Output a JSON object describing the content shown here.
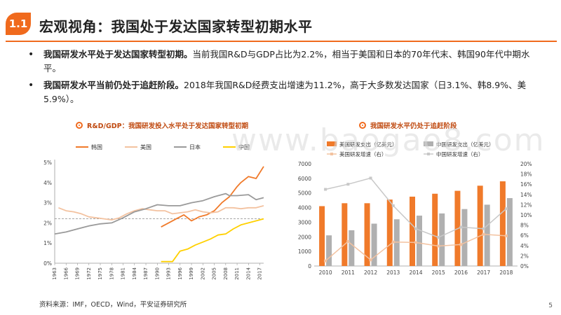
{
  "header": {
    "badge": "1.1",
    "title": "宏观视角：我国处于发达国家转型初期水平"
  },
  "bullets": [
    {
      "bold": "我国研发水平处于发达国家转型初期。",
      "text": "当前我国R&D与GDP占比为2.2%，相当于美国和日本的70年代末、韩国90年代中期水平。"
    },
    {
      "bold": "我国研发水平当前仍处于追赶阶段。",
      "text": "2018年我国R&D经费支出增速为11.2%，高于大多数发达国家（日3.1%、韩8.9%、美5.9%）。"
    }
  ],
  "watermark": "www.baogao8.com",
  "source": "资料来源：IMF，OECD，Wind，平安证券研究所",
  "page_number": "5",
  "chart_data": [
    {
      "type": "line",
      "title": "R&D/GDP：我国研发投入水平处于发达国家转型初期",
      "xlabel": "",
      "ylabel": "",
      "x_tick_labels": [
        "1963",
        "1966",
        "1969",
        "1972",
        "1975",
        "1978",
        "1981",
        "1984",
        "1987",
        "1990",
        "1993",
        "1996",
        "1999",
        "2002",
        "2005",
        "2008",
        "2011",
        "2014",
        "2017"
      ],
      "xlim": [
        1963,
        2018
      ],
      "ylim": [
        0,
        5
      ],
      "y_tick_labels": [
        "0%",
        "1%",
        "2%",
        "3%",
        "4%",
        "5%"
      ],
      "reference_line": 2.2,
      "grid": false,
      "legend_position": "top",
      "colors": {
        "韩国": "#f07a2a",
        "美国": "#f3c2a0",
        "日本": "#9a9a9a",
        "中国": "#ffd000"
      },
      "series": [
        {
          "name": "韩国",
          "x": [
            1991,
            1993,
            1995,
            1997,
            1999,
            2001,
            2003,
            2005,
            2007,
            2009,
            2011,
            2012,
            2014,
            2016,
            2018
          ],
          "values": [
            1.8,
            2.0,
            2.2,
            2.4,
            2.1,
            2.3,
            2.4,
            2.6,
            3.0,
            3.3,
            3.8,
            4.0,
            4.3,
            4.2,
            4.8
          ]
        },
        {
          "name": "美国",
          "x": [
            1964,
            1966,
            1968,
            1970,
            1972,
            1974,
            1976,
            1978,
            1980,
            1982,
            1984,
            1986,
            1988,
            1990,
            1992,
            1994,
            1996,
            1998,
            2000,
            2002,
            2004,
            2006,
            2008,
            2010,
            2012,
            2014,
            2016,
            2018
          ],
          "values": [
            2.75,
            2.6,
            2.55,
            2.45,
            2.3,
            2.25,
            2.2,
            2.15,
            2.25,
            2.45,
            2.6,
            2.7,
            2.65,
            2.6,
            2.6,
            2.45,
            2.5,
            2.55,
            2.65,
            2.55,
            2.5,
            2.55,
            2.75,
            2.75,
            2.7,
            2.75,
            2.75,
            2.85
          ]
        },
        {
          "name": "日本",
          "x": [
            1963,
            1966,
            1969,
            1972,
            1975,
            1978,
            1981,
            1984,
            1987,
            1990,
            1993,
            1996,
            1999,
            2002,
            2005,
            2008,
            2009,
            2011,
            2014,
            2016,
            2018
          ],
          "values": [
            1.45,
            1.55,
            1.7,
            1.85,
            1.95,
            2.0,
            2.25,
            2.55,
            2.7,
            2.9,
            2.85,
            2.85,
            3.0,
            3.1,
            3.3,
            3.45,
            3.35,
            3.35,
            3.4,
            3.15,
            3.25
          ]
        },
        {
          "name": "中国",
          "x": [
            1991,
            1994,
            1996,
            1998,
            2000,
            2002,
            2004,
            2006,
            2008,
            2010,
            2012,
            2014,
            2016,
            2018
          ],
          "values": [
            0.08,
            0.08,
            0.6,
            0.7,
            0.9,
            1.05,
            1.2,
            1.4,
            1.45,
            1.7,
            1.9,
            2.0,
            2.1,
            2.2
          ]
        }
      ]
    },
    {
      "type": "bar",
      "title": "我国研发水平仍处于追赶阶段",
      "categories": [
        "2010",
        "2011",
        "2012",
        "2013",
        "2014",
        "2015",
        "2016",
        "2017",
        "2018"
      ],
      "ylim": [
        0,
        7000
      ],
      "y_tick_labels": [
        "0",
        "1000",
        "2000",
        "3000",
        "4000",
        "5000",
        "6000",
        "7000"
      ],
      "y2lim": [
        0,
        20
      ],
      "y2_tick_labels": [
        "0%",
        "2%",
        "4%",
        "6%",
        "8%",
        "10%",
        "12%",
        "14%",
        "16%",
        "18%",
        "20%"
      ],
      "legend_position": "top",
      "colors": {
        "美国研发支出（亿美元）": "#f07a2a",
        "中国研发支出（亿美元）": "#b0b0b0",
        "美国研发增速（右）": "#f3c2a0",
        "中国研发增速（右）": "#c8c8c8"
      },
      "series": [
        {
          "name": "美国研发支出（亿美元）",
          "axis": "left",
          "values": [
            4100,
            4300,
            4300,
            4550,
            4750,
            4950,
            5150,
            5500,
            5800
          ]
        },
        {
          "name": "中国研发支出（亿美元）",
          "axis": "left",
          "values": [
            2100,
            2450,
            2900,
            3200,
            3450,
            3600,
            3900,
            4200,
            4650
          ]
        },
        {
          "name": "美国研发增速（右）",
          "axis": "right",
          "values": [
            1.0,
            4.8,
            1.2,
            4.7,
            4.6,
            3.9,
            4.2,
            6.2,
            5.9
          ]
        },
        {
          "name": "中国研发增速（右）",
          "axis": "right",
          "values": [
            15.0,
            16.0,
            17.2,
            11.8,
            7.3,
            5.6,
            7.6,
            7.3,
            11.2
          ]
        }
      ]
    }
  ]
}
